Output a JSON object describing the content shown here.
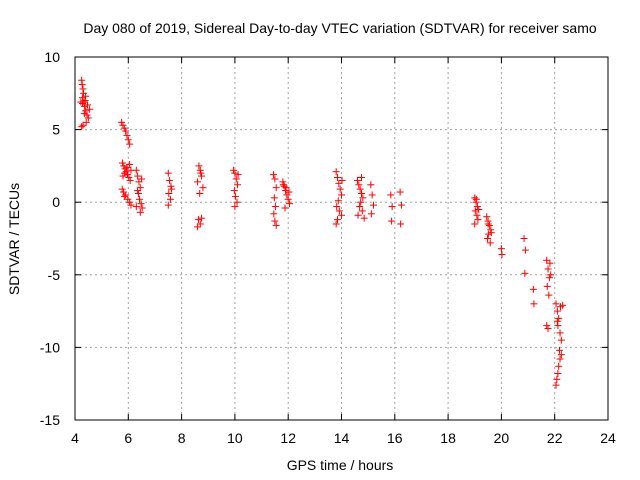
{
  "chart_data": {
    "type": "scatter",
    "title": "Day 080 of 2019, Sidereal Day-to-day VTEC variation (SDTVAR) for receiver samo",
    "xlabel": "GPS time / hours",
    "ylabel": "SDTVAR / TECUs",
    "xlim": [
      4,
      24
    ],
    "ylim": [
      -15,
      10
    ],
    "xticks": [
      4,
      6,
      8,
      10,
      12,
      14,
      16,
      18,
      20,
      22,
      24
    ],
    "yticks": [
      -15,
      -10,
      -5,
      0,
      5,
      10
    ],
    "xtick_labels": [
      "4",
      "6",
      "8",
      "10",
      "12",
      "14",
      "16",
      "18",
      "20",
      "22",
      "24"
    ],
    "ytick_labels": [
      "-15",
      "-10",
      "-5",
      "0",
      "5",
      "10"
    ],
    "grid": true,
    "marker": "+",
    "color": "#ff0000",
    "series": [
      {
        "name": "SDTVAR",
        "points": [
          [
            4.25,
            8.4
          ],
          [
            4.27,
            8.1
          ],
          [
            4.3,
            7.8
          ],
          [
            4.32,
            7.5
          ],
          [
            4.28,
            7.2
          ],
          [
            4.33,
            6.9
          ],
          [
            4.36,
            6.6
          ],
          [
            4.4,
            6.3
          ],
          [
            4.45,
            6.0
          ],
          [
            4.5,
            5.8
          ],
          [
            4.42,
            5.5
          ],
          [
            4.3,
            5.3
          ],
          [
            4.25,
            5.2
          ],
          [
            4.38,
            7.0
          ],
          [
            4.47,
            6.7
          ],
          [
            4.55,
            6.4
          ],
          [
            4.35,
            6.1
          ],
          [
            4.28,
            6.8
          ],
          [
            4.22,
            6.9
          ],
          [
            4.4,
            7.3
          ],
          [
            5.75,
            5.5
          ],
          [
            5.8,
            5.3
          ],
          [
            5.85,
            5.1
          ],
          [
            5.9,
            4.9
          ],
          [
            5.95,
            4.6
          ],
          [
            6.0,
            4.3
          ],
          [
            6.05,
            4.0
          ],
          [
            5.78,
            2.7
          ],
          [
            5.83,
            2.5
          ],
          [
            5.88,
            2.3
          ],
          [
            5.92,
            2.1
          ],
          [
            5.97,
            1.9
          ],
          [
            6.02,
            1.7
          ],
          [
            6.07,
            1.5
          ],
          [
            5.8,
            1.8
          ],
          [
            5.86,
            2.0
          ],
          [
            5.95,
            2.4
          ],
          [
            6.05,
            2.6
          ],
          [
            6.1,
            2.2
          ],
          [
            5.77,
            0.9
          ],
          [
            5.82,
            0.7
          ],
          [
            5.9,
            0.5
          ],
          [
            5.98,
            0.2
          ],
          [
            6.05,
            0.0
          ],
          [
            6.1,
            -0.2
          ],
          [
            5.85,
            0.4
          ],
          [
            6.3,
            2.2
          ],
          [
            6.35,
            1.8
          ],
          [
            6.4,
            1.4
          ],
          [
            6.45,
            1.0
          ],
          [
            6.38,
            0.6
          ],
          [
            6.42,
            0.2
          ],
          [
            6.48,
            -0.1
          ],
          [
            6.52,
            -0.4
          ],
          [
            6.45,
            -0.7
          ],
          [
            6.3,
            -0.3
          ],
          [
            6.35,
            0.8
          ],
          [
            6.5,
            1.6
          ],
          [
            7.5,
            2.0
          ],
          [
            7.55,
            1.5
          ],
          [
            7.6,
            1.1
          ],
          [
            7.52,
            0.6
          ],
          [
            7.58,
            0.2
          ],
          [
            7.5,
            -0.2
          ],
          [
            7.62,
            0.9
          ],
          [
            8.65,
            2.5
          ],
          [
            8.7,
            2.2
          ],
          [
            8.75,
            1.8
          ],
          [
            8.6,
            1.4
          ],
          [
            8.8,
            1.0
          ],
          [
            8.68,
            0.6
          ],
          [
            8.72,
            2.0
          ],
          [
            8.63,
            -1.2
          ],
          [
            8.7,
            -1.5
          ],
          [
            8.75,
            -1.1
          ],
          [
            8.6,
            -1.7
          ],
          [
            9.95,
            2.2
          ],
          [
            10.0,
            2.0
          ],
          [
            10.05,
            1.6
          ],
          [
            10.1,
            1.2
          ],
          [
            9.98,
            0.8
          ],
          [
            10.02,
            0.4
          ],
          [
            10.08,
            0.0
          ],
          [
            10.0,
            -0.3
          ],
          [
            10.12,
            1.9
          ],
          [
            11.45,
            1.9
          ],
          [
            11.5,
            1.6
          ],
          [
            11.55,
            1.0
          ],
          [
            11.48,
            0.3
          ],
          [
            11.52,
            -0.3
          ],
          [
            11.46,
            -0.8
          ],
          [
            11.5,
            -1.3
          ],
          [
            11.55,
            -1.6
          ],
          [
            11.8,
            1.4
          ],
          [
            11.85,
            1.1
          ],
          [
            11.9,
            0.8
          ],
          [
            11.95,
            0.5
          ],
          [
            12.0,
            0.2
          ],
          [
            12.05,
            -0.1
          ],
          [
            11.88,
            -0.4
          ],
          [
            11.82,
            1.2
          ],
          [
            11.92,
            1.0
          ],
          [
            12.03,
            0.7
          ],
          [
            13.8,
            2.1
          ],
          [
            13.85,
            1.7
          ],
          [
            13.9,
            1.3
          ],
          [
            13.95,
            0.9
          ],
          [
            14.0,
            0.5
          ],
          [
            13.88,
            0.1
          ],
          [
            13.82,
            -0.3
          ],
          [
            13.92,
            -0.6
          ],
          [
            14.0,
            -0.9
          ],
          [
            13.85,
            -1.2
          ],
          [
            13.8,
            -1.5
          ],
          [
            14.02,
            1.5
          ],
          [
            14.6,
            1.5
          ],
          [
            14.65,
            1.2
          ],
          [
            14.7,
            0.9
          ],
          [
            14.75,
            0.6
          ],
          [
            14.8,
            0.3
          ],
          [
            14.72,
            0.0
          ],
          [
            14.68,
            -0.3
          ],
          [
            14.78,
            -0.6
          ],
          [
            14.62,
            -0.9
          ],
          [
            14.85,
            -1.1
          ],
          [
            14.75,
            1.7
          ],
          [
            15.1,
            1.2
          ],
          [
            15.15,
            0.5
          ],
          [
            15.2,
            -0.2
          ],
          [
            15.12,
            -0.8
          ],
          [
            15.85,
            0.5
          ],
          [
            15.9,
            -0.3
          ],
          [
            15.88,
            -1.3
          ],
          [
            16.2,
            0.7
          ],
          [
            16.25,
            -0.2
          ],
          [
            16.22,
            -1.5
          ],
          [
            19.0,
            0.3
          ],
          [
            19.05,
            0.0
          ],
          [
            19.1,
            -0.3
          ],
          [
            19.02,
            -0.6
          ],
          [
            19.08,
            -0.9
          ],
          [
            19.12,
            -1.2
          ],
          [
            19.0,
            -1.5
          ],
          [
            19.06,
            0.2
          ],
          [
            19.15,
            -0.5
          ],
          [
            19.45,
            -1.0
          ],
          [
            19.5,
            -1.3
          ],
          [
            19.55,
            -1.6
          ],
          [
            19.6,
            -1.9
          ],
          [
            19.52,
            -2.2
          ],
          [
            19.48,
            -2.5
          ],
          [
            19.58,
            -2.8
          ],
          [
            19.62,
            -2.1
          ],
          [
            19.5,
            -1.5
          ],
          [
            20.0,
            -3.2
          ],
          [
            20.02,
            -3.6
          ],
          [
            20.85,
            -2.5
          ],
          [
            20.9,
            -3.3
          ],
          [
            20.88,
            -4.9
          ],
          [
            21.2,
            -6.0
          ],
          [
            21.22,
            -7.0
          ],
          [
            21.7,
            -4.0
          ],
          [
            21.75,
            -4.6
          ],
          [
            21.8,
            -5.2
          ],
          [
            21.72,
            -5.8
          ],
          [
            21.78,
            -6.4
          ],
          [
            21.7,
            -8.5
          ],
          [
            21.75,
            -8.7
          ],
          [
            21.82,
            -4.2
          ],
          [
            21.85,
            -5.0
          ],
          [
            22.05,
            -7.0
          ],
          [
            22.1,
            -7.5
          ],
          [
            22.15,
            -8.0
          ],
          [
            22.12,
            -8.5
          ],
          [
            22.2,
            -9.0
          ],
          [
            22.25,
            -9.5
          ],
          [
            22.18,
            -10.2
          ],
          [
            22.2,
            -10.8
          ],
          [
            22.15,
            -11.3
          ],
          [
            22.12,
            -11.8
          ],
          [
            22.08,
            -12.2
          ],
          [
            22.05,
            -12.6
          ],
          [
            22.22,
            -7.2
          ],
          [
            22.3,
            -7.1
          ],
          [
            22.1,
            -8.2
          ],
          [
            22.25,
            -10.5
          ]
        ]
      }
    ]
  }
}
